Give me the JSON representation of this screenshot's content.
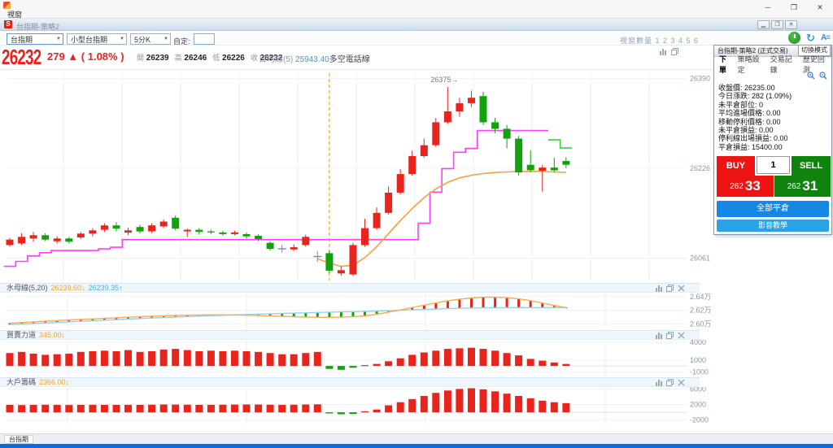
{
  "window": {
    "menu_label": "視窗",
    "minimize": "─",
    "maximize": "❐",
    "close": "✕"
  },
  "mdi": {
    "title": "台指期-策略2",
    "icon_letter": "S",
    "minimize": "▁",
    "maximize": "❐",
    "close": "✕"
  },
  "toolbar": {
    "symbol_select": "台指期",
    "contract_select": "小型台指期",
    "interval_select": "5分K",
    "custom_label": "自定:",
    "custom_value": "",
    "window_count_label": "視窗數量 1 2 3 4 5 6",
    "account_icon_text": "A≡",
    "refresh_icon_text": "↻"
  },
  "quote": {
    "price": "26232",
    "change": "279 ▲ ( 1.08% )",
    "open_label": "開",
    "open": "26239",
    "high_label": "高",
    "high": "26246",
    "low_label": "低",
    "low": "26226",
    "close_label": "收",
    "close": "26232",
    "ma_label": "日均線(5)",
    "ma_value": "25943.40",
    "ma_suffix": "多空電話線"
  },
  "panels": {
    "jelly": {
      "title": "水母線(5,20)",
      "value1": "26239.60↓",
      "value2": "26239.35↑"
    },
    "power": {
      "title": "買賣力道",
      "value": "345.00↓"
    },
    "big": {
      "title": "大戶籌碼",
      "value": "2366.00↓"
    }
  },
  "trade_panel": {
    "title": "台指期-策略2 (正式交易)",
    "mode_button": "切換模式",
    "tabs": [
      "下單",
      "策略設定",
      "交易記錄",
      "歷史回測"
    ],
    "info": [
      {
        "label": "收盤價",
        "value": "26235.00"
      },
      {
        "label": "今日漲跌",
        "value": "282 (1.09%)"
      },
      {
        "label": "未平倉部位",
        "value": "0"
      },
      {
        "label": "平均進場價格",
        "value": "0.00"
      },
      {
        "label": "移動停利價格",
        "value": "0.00"
      },
      {
        "label": "未平倉損益",
        "value": "0.00"
      },
      {
        "label": "停利線出場損益",
        "value": "0.00"
      },
      {
        "label": "平倉損益",
        "value": "15400.00"
      }
    ],
    "buy_label": "BUY",
    "sell_label": "SELL",
    "qty": "1",
    "buy_price_prefix": "262",
    "buy_price": "33",
    "sell_price_prefix": "262",
    "sell_price": "31",
    "close_all_button": "全部平倉",
    "tutorial_button": "影音教學"
  },
  "statusbar": {
    "tab": "台指期"
  },
  "colors": {
    "up": "#e8241d",
    "down": "#13a10e",
    "doji": "#8a8a8a",
    "stop_line": "#ff3dff",
    "stop_line_exit": "#35d435",
    "ma": "#ff9d3c",
    "fast": "#ffab49",
    "slow": "#8fd3ee",
    "dash": "#ffa033",
    "grid": "#e9eef5",
    "axis_text": "#8a97a5"
  },
  "chart_data": [
    {
      "type": "candlestick",
      "title": "台指期 5分K",
      "ylim": [
        26020,
        26400
      ],
      "axis": [
        {
          "label": "26390",
          "value": 26390
        },
        {
          "label": "26226",
          "value": 26226
        },
        {
          "label": "26061",
          "value": 26061
        }
      ],
      "vgrid": [
        78,
        150,
        222,
        294,
        366,
        438,
        510,
        582,
        654,
        726,
        798
      ],
      "dashed_line_bar_index": 27,
      "annotation": {
        "text": "26375→",
        "bar_index": 37,
        "price": 26388
      },
      "candles": [
        [
          26085,
          26098,
          26082,
          26095
        ],
        [
          26088,
          26107,
          26085,
          26100
        ],
        [
          26097,
          26109,
          26091,
          26103
        ],
        [
          26103,
          26107,
          26092,
          26095
        ],
        [
          26092,
          26101,
          26088,
          26097
        ],
        [
          26097,
          26100,
          26088,
          26091
        ],
        [
          26099,
          26109,
          26096,
          26106
        ],
        [
          26106,
          26116,
          26101,
          26112
        ],
        [
          26113,
          26125,
          26109,
          26121
        ],
        [
          26121,
          26127,
          26110,
          26115
        ],
        [
          26108,
          26117,
          26103,
          26112
        ],
        [
          26118,
          26122,
          26106,
          26110
        ],
        [
          26110,
          26125,
          26107,
          26121
        ],
        [
          26119,
          26132,
          26116,
          26128
        ],
        [
          26135,
          26139,
          26112,
          26115
        ],
        [
          26110,
          26115,
          26100,
          26113
        ],
        [
          26113,
          26116,
          26104,
          26109
        ],
        [
          26110,
          26113,
          26105,
          26108
        ],
        [
          26108,
          26111,
          26102,
          26105
        ],
        [
          26105,
          26111,
          26103,
          26108
        ],
        [
          26105,
          26108,
          26097,
          26101
        ],
        [
          26102,
          26105,
          26092,
          26096
        ],
        [
          26089,
          26092,
          26075,
          26078
        ],
        [
          26078,
          26086,
          26071,
          26078
        ],
        [
          26077,
          26086,
          26074,
          26081
        ],
        [
          26085,
          26104,
          26082,
          26100
        ],
        [
          26064,
          26074,
          26054,
          26064
        ],
        [
          26070,
          26075,
          26033,
          26038
        ],
        [
          26033,
          26046,
          26029,
          26039
        ],
        [
          26031,
          26089,
          26028,
          26085
        ],
        [
          26085,
          26133,
          26082,
          26116
        ],
        [
          26116,
          26154,
          26113,
          26144
        ],
        [
          26144,
          26192,
          26141,
          26181
        ],
        [
          26181,
          26224,
          26178,
          26215
        ],
        [
          26215,
          26258,
          26212,
          26248
        ],
        [
          26248,
          26280,
          26245,
          26268
        ],
        [
          26268,
          26318,
          26265,
          26310
        ],
        [
          26310,
          26375,
          26307,
          26330
        ],
        [
          26330,
          26355,
          26320,
          26345
        ],
        [
          26345,
          26368,
          26338,
          26355
        ],
        [
          26358,
          26366,
          26305,
          26310
        ],
        [
          26310,
          26318,
          26290,
          26298
        ],
        [
          26298,
          26305,
          26262,
          26280
        ],
        [
          26280,
          26285,
          26212,
          26218
        ],
        [
          26232,
          26259,
          26218,
          26222
        ],
        [
          26221,
          26232,
          26183,
          26227
        ],
        [
          26227,
          26245,
          26218,
          26222
        ],
        [
          26239,
          26246,
          26226,
          26232
        ]
      ],
      "stop_line": {
        "green_from": 46,
        "values": [
          26046,
          26055,
          26065,
          26071,
          26075,
          26075,
          26075,
          26075,
          26078,
          26081,
          26095,
          26095,
          26095,
          26095,
          26095,
          26095,
          26095,
          26095,
          26095,
          26095,
          26095,
          26095,
          26095,
          26095,
          26095,
          26095,
          26095,
          26095,
          26095,
          26095,
          26095,
          26095,
          26095,
          26095,
          26095,
          26125,
          26182,
          26225,
          26255,
          26262,
          26295,
          26295,
          26295,
          26295,
          26295,
          26295,
          26278,
          26263
        ]
      },
      "ma_line": {
        "start_index": 26,
        "values": [
          26060,
          26052,
          26046,
          26048,
          26062,
          26082,
          26106,
          26130,
          26152,
          26172,
          26188,
          26200,
          26208,
          26213,
          26216,
          26218,
          26219,
          26220,
          26220,
          26220,
          26219,
          26218
        ]
      }
    },
    {
      "type": "line-histogram",
      "title": "水母線(5,20)",
      "ylim": [
        25945,
        26445
      ],
      "axis": [
        {
          "label": "2.64万",
          "value": 26400
        },
        {
          "label": "2.62万",
          "value": 26200
        },
        {
          "label": "2.60万",
          "value": 26000
        }
      ],
      "vgrid": [
        83,
        303,
        523,
        744
      ],
      "series": [
        {
          "name": "fast",
          "values": [
            26010,
            26020,
            26030,
            26040,
            26049,
            26058,
            26066,
            26074,
            26082,
            26090,
            26098,
            26106,
            26113,
            26119,
            26124,
            26128,
            26131,
            26133,
            26133,
            26131,
            26127,
            26122,
            26116,
            26110,
            26104,
            26100,
            26097,
            26096,
            26098,
            26104,
            26118,
            26142,
            26172,
            26205,
            26240,
            26275,
            26308,
            26338,
            26362,
            26380,
            26390,
            26392,
            26384,
            26366,
            26340,
            26306,
            26270,
            26239.6
          ]
        },
        {
          "name": "slow",
          "values": [
            25990,
            25998,
            26006,
            26014,
            26022,
            26030,
            26038,
            26046,
            26054,
            26062,
            26070,
            26078,
            26086,
            26093,
            26100,
            26107,
            26114,
            26120,
            26126,
            26132,
            26138,
            26143,
            26148,
            26153,
            26158,
            26163,
            26168,
            26172,
            26176,
            26180,
            26184,
            26189,
            26194,
            26200,
            26206,
            26212,
            26218,
            26223,
            26228,
            26232,
            26235,
            26237,
            26238,
            26239,
            26239,
            26239,
            26239,
            26239.35
          ]
        }
      ]
    },
    {
      "type": "bar",
      "title": "買賣力道",
      "ylim": [
        -1500,
        4300
      ],
      "axis": [
        {
          "label": "4000",
          "value": 4000
        },
        {
          "label": "1000",
          "value": 1000
        },
        {
          "label": "-1000",
          "value": -1000
        }
      ],
      "vgrid": [
        83,
        303,
        523,
        744
      ],
      "values": [
        2200,
        2400,
        2100,
        1900,
        2000,
        2100,
        2400,
        2500,
        2600,
        2500,
        2700,
        2400,
        2500,
        2800,
        2900,
        2700,
        2500,
        2600,
        2500,
        2600,
        2500,
        2400,
        2200,
        2000,
        2000,
        2200,
        2400,
        -500,
        -650,
        -300,
        150,
        350,
        800,
        1300,
        1900,
        2300,
        2600,
        2900,
        3000,
        3100,
        2900,
        2600,
        2200,
        1800,
        1200,
        900,
        600,
        345
      ]
    },
    {
      "type": "bar",
      "title": "大戶籌碼",
      "ylim": [
        -2500,
        6300
      ],
      "axis": [
        {
          "label": "6000",
          "value": 6000
        },
        {
          "label": "2000",
          "value": 2000
        },
        {
          "label": "-2000",
          "value": -2000
        }
      ],
      "vgrid": [
        83,
        303,
        523,
        744
      ],
      "values": [
        1900,
        1850,
        1900,
        1950,
        1900,
        1880,
        1900,
        1920,
        1900,
        1890,
        1910,
        1900,
        1950,
        2000,
        1980,
        1950,
        1900,
        1920,
        1950,
        1980,
        2000,
        1980,
        1950,
        1900,
        1950,
        2000,
        2050,
        -300,
        -500,
        -450,
        250,
        700,
        1800,
        2600,
        3400,
        4200,
        5000,
        5600,
        6000,
        6200,
        5900,
        5400,
        4800,
        4200,
        3600,
        3000,
        2600,
        2366
      ]
    }
  ]
}
